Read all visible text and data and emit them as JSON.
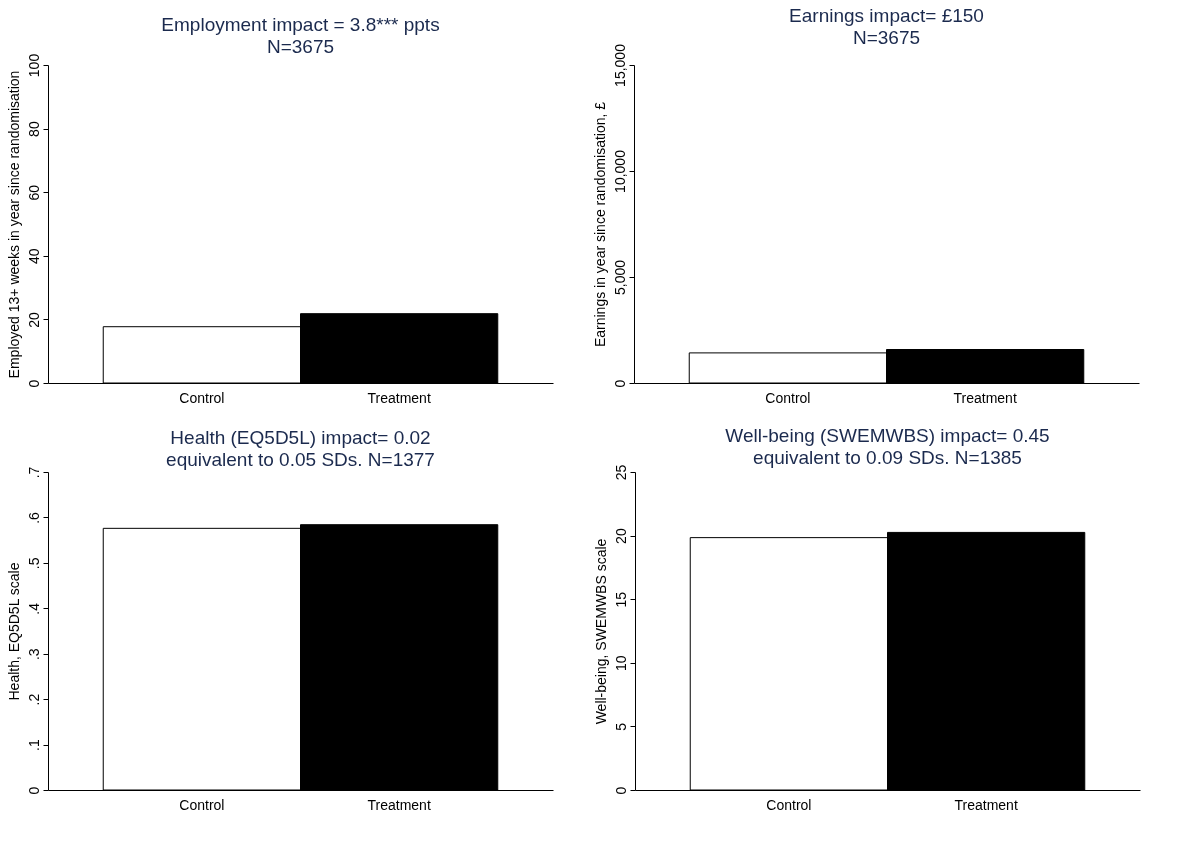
{
  "chart_data": [
    {
      "type": "bar",
      "title": "Employment impact = 3.8*** ppts\nN=3675",
      "ylabel": "Employed 13+ weeks in year since randomisation",
      "categories": [
        "Control",
        "Treatment"
      ],
      "values": [
        17.7,
        21.8
      ],
      "colors": [
        "#ffffff",
        "#000000"
      ],
      "ylim": [
        0,
        100
      ],
      "yticks": [
        0,
        20,
        40,
        60,
        80,
        100
      ],
      "grid": false
    },
    {
      "type": "bar",
      "title": "Earnings  impact= £150\nN=3675",
      "ylabel": "Earnings in year since randomisation, £",
      "categories": [
        "Control",
        "Treatment"
      ],
      "values": [
        1420,
        1580
      ],
      "colors": [
        "#ffffff",
        "#000000"
      ],
      "ylim": [
        0,
        15000
      ],
      "yticks": [
        0,
        {
          "value": 5000,
          "label": "5,000"
        },
        {
          "value": 10000,
          "label": "10,000"
        },
        {
          "value": 15000,
          "label": "15,000"
        }
      ],
      "grid": false
    },
    {
      "type": "bar",
      "title": "Health (EQ5D5L) impact= 0.02\nequivalent to 0.05 SDs.  N=1377",
      "ylabel": "Health, EQ5D5L scale",
      "categories": [
        "Control",
        "Treatment"
      ],
      "values": [
        0.576,
        0.584
      ],
      "colors": [
        "#ffffff",
        "#000000"
      ],
      "ylim": [
        0,
        0.7
      ],
      "yticks": [
        0,
        {
          "value": 0.1,
          "label": ".1"
        },
        {
          "value": 0.2,
          "label": ".2"
        },
        {
          "value": 0.3,
          "label": ".3"
        },
        {
          "value": 0.4,
          "label": ".4"
        },
        {
          "value": 0.5,
          "label": ".5"
        },
        {
          "value": 0.6,
          "label": ".6"
        },
        {
          "value": 0.7,
          "label": ".7"
        }
      ],
      "grid": false
    },
    {
      "type": "bar",
      "title": "Well-being (SWEMWBS) impact= 0.45\nequivalent to 0.09 SDs.  N=1385",
      "ylabel": "Well-being, SWEMWBS scale",
      "categories": [
        "Control",
        "Treatment"
      ],
      "values": [
        19.84,
        20.25
      ],
      "colors": [
        "#ffffff",
        "#000000"
      ],
      "ylim": [
        0,
        25
      ],
      "yticks": [
        0,
        5,
        10,
        15,
        20,
        25
      ],
      "grid": false
    }
  ]
}
